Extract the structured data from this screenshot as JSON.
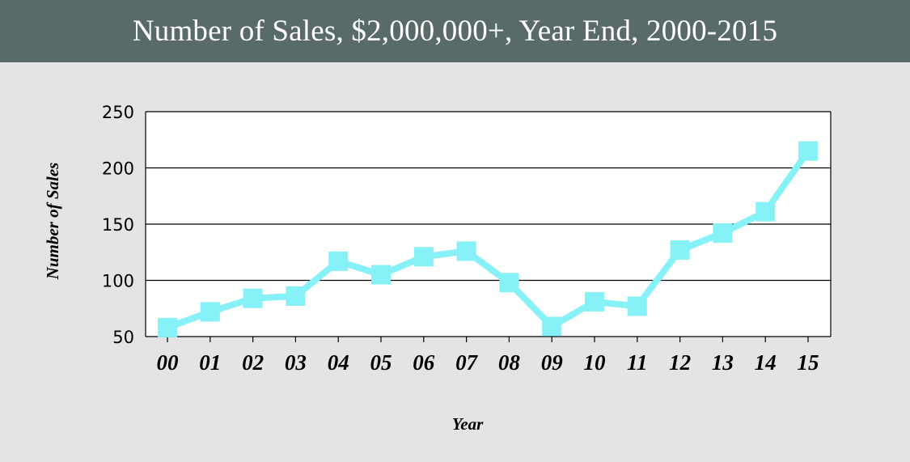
{
  "header": {
    "title": "Number of Sales, $2,000,000+, Year End, 2000-2015"
  },
  "colors": {
    "header_bg": "#596b69",
    "background": "#e4e4e4",
    "plot_bg": "#ffffff",
    "series": "#86f1f7",
    "gridline": "#000000"
  },
  "chart_data": {
    "type": "line",
    "title": "Number of Sales, $2,000,000+, Year End, 2000-2015",
    "xlabel": "Year",
    "ylabel": "Number of Sales",
    "categories": [
      "00",
      "01",
      "02",
      "03",
      "04",
      "05",
      "06",
      "07",
      "08",
      "09",
      "10",
      "11",
      "12",
      "13",
      "14",
      "15"
    ],
    "series": [
      {
        "values": [
          58,
          72,
          84,
          86,
          117,
          105,
          121,
          126,
          98,
          59,
          81,
          77,
          127,
          142,
          161,
          215
        ]
      }
    ],
    "ylim": [
      50,
      250
    ],
    "yticks": [
      50,
      100,
      150,
      200,
      250
    ],
    "grid": true,
    "marker": "square",
    "legend": "none"
  }
}
